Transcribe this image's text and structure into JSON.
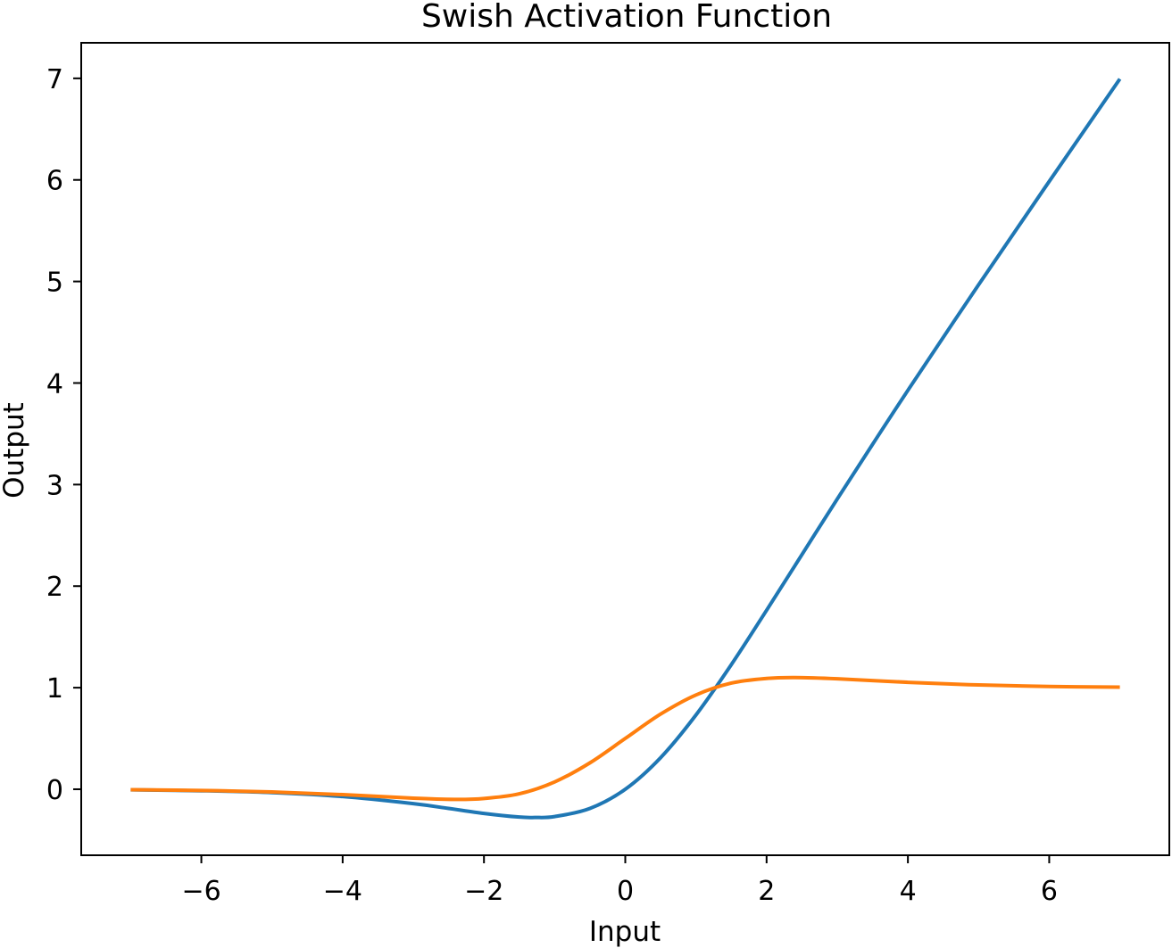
{
  "chart_data": {
    "type": "line",
    "title": "Swish Activation Function",
    "xlabel": "Input",
    "ylabel": "Output",
    "xlim": [
      -7.7,
      7.7
    ],
    "ylim": [
      -0.65,
      7.35
    ],
    "xticks": [
      -6,
      -4,
      -2,
      0,
      2,
      4,
      6
    ],
    "xtick_labels": [
      "−6",
      "−4",
      "−2",
      "0",
      "2",
      "4",
      "6"
    ],
    "yticks": [
      0,
      1,
      2,
      3,
      4,
      5,
      6,
      7
    ],
    "ytick_labels": [
      "0",
      "1",
      "2",
      "3",
      "4",
      "5",
      "6",
      "7"
    ],
    "grid": false,
    "legend": "none",
    "series": [
      {
        "color": "#1f77b4",
        "x": [
          -7,
          -6,
          -5,
          -4,
          -3,
          -2.5,
          -2,
          -1.5,
          -1.28,
          -1,
          -0.5,
          0,
          0.5,
          1,
          1.5,
          2,
          2.5,
          3,
          3.5,
          4,
          5,
          6,
          7
        ],
        "y": [
          -0.006,
          -0.015,
          -0.033,
          -0.072,
          -0.142,
          -0.189,
          -0.238,
          -0.274,
          -0.278,
          -0.269,
          -0.189,
          0.0,
          0.311,
          0.731,
          1.226,
          1.762,
          2.31,
          2.858,
          3.396,
          3.928,
          4.967,
          5.985,
          6.994
        ]
      },
      {
        "color": "#ff7f0e",
        "x": [
          -7,
          -6,
          -5,
          -4,
          -3,
          -2.4,
          -2,
          -1.5,
          -1,
          -0.5,
          0,
          0.5,
          1,
          1.5,
          2,
          2.4,
          3,
          4,
          5,
          6,
          7
        ],
        "y": [
          -0.005,
          -0.012,
          -0.027,
          -0.053,
          -0.088,
          -0.1,
          -0.091,
          -0.045,
          0.072,
          0.26,
          0.5,
          0.74,
          0.928,
          1.045,
          1.091,
          1.1,
          1.088,
          1.053,
          1.027,
          1.012,
          1.005
        ]
      }
    ]
  }
}
